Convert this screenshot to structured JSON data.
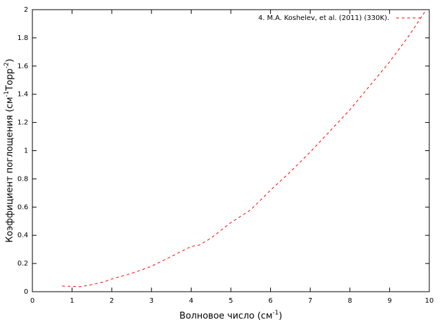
{
  "chart_data": {
    "type": "line",
    "xlabel": [
      "Волновое число (см",
      "-1",
      ")"
    ],
    "ylabel": [
      "Коэффициент поглощения (см",
      "-1",
      "Торр",
      "-2",
      ")"
    ],
    "x": [
      0.75,
      1.2,
      1.5,
      1.8,
      2,
      2.5,
      3,
      3.5,
      4,
      4.2,
      4.5,
      5,
      5.5,
      6,
      6.5,
      7,
      7.5,
      8,
      8.5,
      9,
      9.5,
      9.9
    ],
    "series": [
      {
        "name": "4. M.A. Koshelev, et al. (2011) (330K).",
        "color": "#ff0000",
        "values": [
          0.04,
          0.035,
          0.05,
          0.07,
          0.09,
          0.13,
          0.18,
          0.25,
          0.32,
          0.33,
          0.38,
          0.49,
          0.58,
          0.72,
          0.85,
          0.99,
          1.14,
          1.29,
          1.46,
          1.63,
          1.82,
          1.99
        ]
      }
    ],
    "xlim": [
      0,
      10
    ],
    "xticks": [
      0,
      1,
      2,
      3,
      4,
      5,
      6,
      7,
      8,
      9,
      10
    ],
    "ylim": [
      0,
      2
    ],
    "yticks": [
      0,
      0.2,
      0.4,
      0.6,
      0.8,
      1,
      1.2,
      1.4,
      1.6,
      1.8,
      2
    ],
    "legend": "top-right",
    "dashed": true
  }
}
